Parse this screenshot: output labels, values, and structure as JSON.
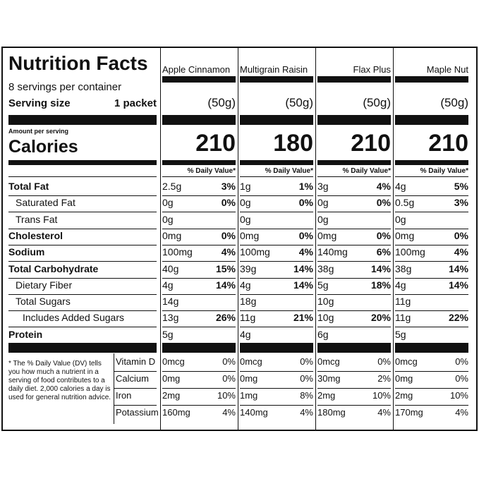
{
  "header": {
    "title": "Nutrition Facts",
    "servings": "8 servings per container",
    "serving_size_label": "Serving size",
    "serving_size_value": "1 packet",
    "amount_per_serving": "Amount per serving",
    "calories_label": "Calories"
  },
  "columns": [
    {
      "name": "Apple Cinnamon",
      "serving": "(50g)",
      "calories": "210",
      "dv_header": "% Daily Value*"
    },
    {
      "name": "Multigrain Raisin",
      "serving": "(50g)",
      "calories": "180",
      "dv_header": "% Daily Value*"
    },
    {
      "name": "Flax Plus",
      "serving": "(50g)",
      "calories": "210",
      "dv_header": "% Daily Value*"
    },
    {
      "name": "Maple Nut",
      "serving": "(50g)",
      "calories": "210",
      "dv_header": "% Daily Value*"
    }
  ],
  "nutrients": [
    {
      "label": "Total Fat",
      "values": [
        [
          "2.5g",
          "3%"
        ],
        [
          "1g",
          "1%"
        ],
        [
          "3g",
          "4%"
        ],
        [
          "4g",
          "5%"
        ]
      ]
    },
    {
      "label": "Saturated Fat",
      "values": [
        [
          "0g",
          "0%"
        ],
        [
          "0g",
          "0%"
        ],
        [
          "0g",
          "0%"
        ],
        [
          "0.5g",
          "3%"
        ]
      ]
    },
    {
      "label": "Trans Fat",
      "values": [
        [
          "0g"
        ],
        [
          "0g"
        ],
        [
          "0g"
        ],
        [
          "0g"
        ]
      ]
    },
    {
      "label": "Cholesterol",
      "values": [
        [
          "0mg",
          "0%"
        ],
        [
          "0mg",
          "0%"
        ],
        [
          "0mg",
          "0%"
        ],
        [
          "0mg",
          "0%"
        ]
      ]
    },
    {
      "label": "Sodium",
      "values": [
        [
          "100mg",
          "4%"
        ],
        [
          "100mg",
          "4%"
        ],
        [
          "140mg",
          "6%"
        ],
        [
          "100mg",
          "4%"
        ]
      ]
    },
    {
      "label": "Total Carbohydrate",
      "values": [
        [
          "40g",
          "15%"
        ],
        [
          "39g",
          "14%"
        ],
        [
          "38g",
          "14%"
        ],
        [
          "38g",
          "14%"
        ]
      ]
    },
    {
      "label": "Dietary Fiber",
      "values": [
        [
          "4g",
          "14%"
        ],
        [
          "4g",
          "14%"
        ],
        [
          "5g",
          "18%"
        ],
        [
          "4g",
          "14%"
        ]
      ]
    },
    {
      "label": "Total Sugars",
      "values": [
        [
          "14g"
        ],
        [
          "18g"
        ],
        [
          "10g"
        ],
        [
          "11g"
        ]
      ]
    },
    {
      "label": "Includes Added Sugars",
      "values": [
        [
          "13g",
          "26%"
        ],
        [
          "11g",
          "21%"
        ],
        [
          "10g",
          "20%"
        ],
        [
          "11g",
          "22%"
        ]
      ]
    },
    {
      "label": "Protein",
      "values": [
        [
          "5g"
        ],
        [
          "4g"
        ],
        [
          "6g"
        ],
        [
          "5g"
        ]
      ]
    }
  ],
  "footnote": "* The % Daily Value (DV) tells you how much a nutrient in a serving of food contributes to a daily diet. 2,000 calories a day is used for general nutrition advice.",
  "vitamins": [
    {
      "label": "Vitamin D",
      "values": [
        [
          "0mcg",
          "0%"
        ],
        [
          "0mcg",
          "0%"
        ],
        [
          "0mcg",
          "0%"
        ],
        [
          "0mcg",
          "0%"
        ]
      ]
    },
    {
      "label": "Calcium",
      "values": [
        [
          "0mg",
          "0%"
        ],
        [
          "0mg",
          "0%"
        ],
        [
          "30mg",
          "2%"
        ],
        [
          "0mg",
          "0%"
        ]
      ]
    },
    {
      "label": "Iron",
      "values": [
        [
          "2mg",
          "10%"
        ],
        [
          "1mg",
          "8%"
        ],
        [
          "2mg",
          "10%"
        ],
        [
          "2mg",
          "10%"
        ]
      ]
    },
    {
      "label": "Potassium",
      "values": [
        [
          "160mg",
          "4%"
        ],
        [
          "140mg",
          "4%"
        ],
        [
          "180mg",
          "4%"
        ],
        [
          "170mg",
          "4%"
        ]
      ]
    }
  ]
}
